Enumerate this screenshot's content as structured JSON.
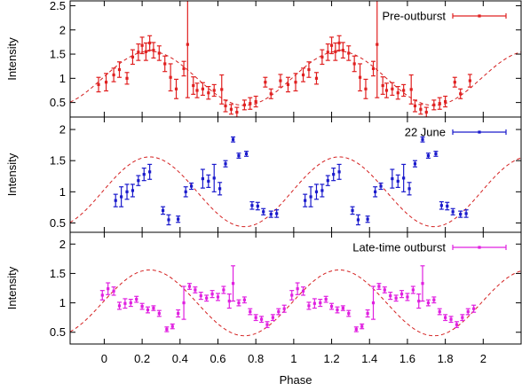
{
  "chart_data": {
    "type": "scatter",
    "xlabel": "Phase",
    "xlim": [
      -0.18,
      2.2
    ],
    "xticks": [
      0,
      0.2,
      0.4,
      0.6,
      0.8,
      1,
      1.2,
      1.4,
      1.6,
      1.8,
      2
    ],
    "xtick_labels": [
      "0",
      "0.2",
      "0.4",
      "0.6",
      "0.8",
      "1",
      "1.2",
      "1.4",
      "1.6",
      "1.8",
      "2"
    ],
    "model_curve": {
      "style": "dashed",
      "color": "#d42020",
      "mean": 1.0,
      "amplitude": 0.56,
      "peak_phase": 0.24
    },
    "panels": [
      {
        "ylabel": "Intensity",
        "ylim": [
          0.2,
          2.6
        ],
        "yticks": [
          0.5,
          1,
          1.5,
          2,
          2.5
        ],
        "ytick_labels": [
          "0.5",
          "1",
          "1.5",
          "2",
          "2.5"
        ],
        "legend": "Pre-outburst",
        "legend_position": "top-right",
        "color": "#e02020",
        "points": [
          {
            "x": -0.03,
            "y": 0.87,
            "err": 0.15
          },
          {
            "x": 0.01,
            "y": 0.92,
            "err": 0.18
          },
          {
            "x": 0.05,
            "y": 1.07,
            "err": 0.14
          },
          {
            "x": 0.08,
            "y": 1.18,
            "err": 0.16
          },
          {
            "x": 0.12,
            "y": 1.0,
            "err": 0.12
          },
          {
            "x": 0.15,
            "y": 1.44,
            "err": 0.15
          },
          {
            "x": 0.18,
            "y": 1.54,
            "err": 0.17
          },
          {
            "x": 0.2,
            "y": 1.68,
            "err": 0.17
          },
          {
            "x": 0.22,
            "y": 1.55,
            "err": 0.18
          },
          {
            "x": 0.24,
            "y": 1.73,
            "err": 0.15
          },
          {
            "x": 0.26,
            "y": 1.58,
            "err": 0.16
          },
          {
            "x": 0.29,
            "y": 1.52,
            "err": 0.15
          },
          {
            "x": 0.32,
            "y": 1.3,
            "err": 0.16
          },
          {
            "x": 0.35,
            "y": 1.02,
            "err": 0.28
          },
          {
            "x": 0.38,
            "y": 0.78,
            "err": 0.2
          },
          {
            "x": 0.42,
            "y": 1.2,
            "err": 0.15
          },
          {
            "x": 0.44,
            "y": 1.7,
            "err": 1.1
          },
          {
            "x": 0.47,
            "y": 0.85,
            "err": 0.18
          },
          {
            "x": 0.49,
            "y": 0.75,
            "err": 0.15
          },
          {
            "x": 0.52,
            "y": 0.78,
            "err": 0.13
          },
          {
            "x": 0.55,
            "y": 0.7,
            "err": 0.13
          },
          {
            "x": 0.58,
            "y": 0.75,
            "err": 0.12
          },
          {
            "x": 0.62,
            "y": 0.77,
            "err": 0.3
          },
          {
            "x": 0.64,
            "y": 0.43,
            "err": 0.12
          },
          {
            "x": 0.67,
            "y": 0.36,
            "err": 0.1
          },
          {
            "x": 0.7,
            "y": 0.3,
            "err": 0.1
          },
          {
            "x": 0.74,
            "y": 0.45,
            "err": 0.1
          },
          {
            "x": 0.77,
            "y": 0.48,
            "err": 0.12
          },
          {
            "x": 0.8,
            "y": 0.52,
            "err": 0.11
          },
          {
            "x": 0.85,
            "y": 0.92,
            "err": 0.1
          },
          {
            "x": 0.88,
            "y": 0.68,
            "err": 0.1
          },
          {
            "x": 0.93,
            "y": 0.95,
            "err": 0.13
          },
          {
            "x": 0.97,
            "y": 0.87,
            "err": 0.15
          },
          {
            "x": 1.01,
            "y": 0.92,
            "err": 0.18
          },
          {
            "x": 1.05,
            "y": 1.07,
            "err": 0.14
          },
          {
            "x": 1.08,
            "y": 1.18,
            "err": 0.16
          },
          {
            "x": 1.12,
            "y": 1.0,
            "err": 0.12
          },
          {
            "x": 1.15,
            "y": 1.44,
            "err": 0.15
          },
          {
            "x": 1.18,
            "y": 1.54,
            "err": 0.17
          },
          {
            "x": 1.2,
            "y": 1.68,
            "err": 0.17
          },
          {
            "x": 1.22,
            "y": 1.55,
            "err": 0.18
          },
          {
            "x": 1.24,
            "y": 1.73,
            "err": 0.15
          },
          {
            "x": 1.26,
            "y": 1.58,
            "err": 0.16
          },
          {
            "x": 1.29,
            "y": 1.52,
            "err": 0.15
          },
          {
            "x": 1.32,
            "y": 1.3,
            "err": 0.16
          },
          {
            "x": 1.35,
            "y": 1.02,
            "err": 0.28
          },
          {
            "x": 1.38,
            "y": 0.78,
            "err": 0.2
          },
          {
            "x": 1.42,
            "y": 1.2,
            "err": 0.15
          },
          {
            "x": 1.44,
            "y": 1.7,
            "err": 1.1
          },
          {
            "x": 1.47,
            "y": 0.85,
            "err": 0.18
          },
          {
            "x": 1.49,
            "y": 0.75,
            "err": 0.15
          },
          {
            "x": 1.52,
            "y": 0.78,
            "err": 0.13
          },
          {
            "x": 1.55,
            "y": 0.7,
            "err": 0.13
          },
          {
            "x": 1.58,
            "y": 0.75,
            "err": 0.12
          },
          {
            "x": 1.62,
            "y": 0.77,
            "err": 0.3
          },
          {
            "x": 1.64,
            "y": 0.43,
            "err": 0.12
          },
          {
            "x": 1.67,
            "y": 0.36,
            "err": 0.1
          },
          {
            "x": 1.7,
            "y": 0.3,
            "err": 0.1
          },
          {
            "x": 1.74,
            "y": 0.45,
            "err": 0.1
          },
          {
            "x": 1.77,
            "y": 0.48,
            "err": 0.12
          },
          {
            "x": 1.8,
            "y": 0.52,
            "err": 0.11
          },
          {
            "x": 1.85,
            "y": 0.92,
            "err": 0.1
          },
          {
            "x": 1.88,
            "y": 0.68,
            "err": 0.1
          },
          {
            "x": 1.93,
            "y": 0.95,
            "err": 0.13
          }
        ]
      },
      {
        "ylabel": "Intensity",
        "ylim": [
          0.35,
          2.2
        ],
        "yticks": [
          0.5,
          1,
          1.5,
          2
        ],
        "ytick_labels": [
          "0.5",
          "1",
          "1.5",
          "2"
        ],
        "legend": "22 June",
        "legend_position": "top-right",
        "color": "#1a1acc",
        "points": [
          {
            "x": 0.06,
            "y": 0.86,
            "err": 0.1
          },
          {
            "x": 0.09,
            "y": 0.92,
            "err": 0.16
          },
          {
            "x": 0.12,
            "y": 1.0,
            "err": 0.12
          },
          {
            "x": 0.15,
            "y": 1.02,
            "err": 0.1
          },
          {
            "x": 0.18,
            "y": 1.18,
            "err": 0.08
          },
          {
            "x": 0.21,
            "y": 1.28,
            "err": 0.1
          },
          {
            "x": 0.24,
            "y": 1.32,
            "err": 0.12
          },
          {
            "x": 0.31,
            "y": 0.7,
            "err": 0.06
          },
          {
            "x": 0.34,
            "y": 0.55,
            "err": 0.08
          },
          {
            "x": 0.39,
            "y": 0.56,
            "err": 0.05
          },
          {
            "x": 0.43,
            "y": 1.0,
            "err": 0.08
          },
          {
            "x": 0.46,
            "y": 1.09,
            "err": 0.05
          },
          {
            "x": 0.52,
            "y": 1.21,
            "err": 0.15
          },
          {
            "x": 0.55,
            "y": 1.17,
            "err": 0.1
          },
          {
            "x": 0.58,
            "y": 1.22,
            "err": 0.22
          },
          {
            "x": 0.61,
            "y": 1.05,
            "err": 0.1
          },
          {
            "x": 0.64,
            "y": 1.45,
            "err": 0.05
          },
          {
            "x": 0.68,
            "y": 1.84,
            "err": 0.04
          },
          {
            "x": 0.71,
            "y": 1.58,
            "err": 0.04
          },
          {
            "x": 0.75,
            "y": 1.61,
            "err": 0.04
          },
          {
            "x": 0.78,
            "y": 0.78,
            "err": 0.06
          },
          {
            "x": 0.81,
            "y": 0.77,
            "err": 0.06
          },
          {
            "x": 0.84,
            "y": 0.68,
            "err": 0.05
          },
          {
            "x": 0.88,
            "y": 0.64,
            "err": 0.05
          },
          {
            "x": 0.91,
            "y": 0.65,
            "err": 0.06
          },
          {
            "x": 1.06,
            "y": 0.86,
            "err": 0.1
          },
          {
            "x": 1.09,
            "y": 0.92,
            "err": 0.16
          },
          {
            "x": 1.12,
            "y": 1.0,
            "err": 0.12
          },
          {
            "x": 1.15,
            "y": 1.02,
            "err": 0.1
          },
          {
            "x": 1.18,
            "y": 1.18,
            "err": 0.08
          },
          {
            "x": 1.21,
            "y": 1.28,
            "err": 0.1
          },
          {
            "x": 1.24,
            "y": 1.32,
            "err": 0.12
          },
          {
            "x": 1.31,
            "y": 0.7,
            "err": 0.06
          },
          {
            "x": 1.34,
            "y": 0.55,
            "err": 0.08
          },
          {
            "x": 1.39,
            "y": 0.56,
            "err": 0.05
          },
          {
            "x": 1.43,
            "y": 1.0,
            "err": 0.08
          },
          {
            "x": 1.46,
            "y": 1.09,
            "err": 0.05
          },
          {
            "x": 1.52,
            "y": 1.21,
            "err": 0.15
          },
          {
            "x": 1.55,
            "y": 1.17,
            "err": 0.1
          },
          {
            "x": 1.58,
            "y": 1.22,
            "err": 0.22
          },
          {
            "x": 1.61,
            "y": 1.05,
            "err": 0.1
          },
          {
            "x": 1.64,
            "y": 1.45,
            "err": 0.05
          },
          {
            "x": 1.68,
            "y": 1.84,
            "err": 0.04
          },
          {
            "x": 1.71,
            "y": 1.58,
            "err": 0.04
          },
          {
            "x": 1.75,
            "y": 1.61,
            "err": 0.04
          },
          {
            "x": 1.78,
            "y": 0.78,
            "err": 0.06
          },
          {
            "x": 1.81,
            "y": 0.77,
            "err": 0.06
          },
          {
            "x": 1.84,
            "y": 0.68,
            "err": 0.05
          },
          {
            "x": 1.88,
            "y": 0.64,
            "err": 0.05
          },
          {
            "x": 1.91,
            "y": 0.65,
            "err": 0.06
          }
        ]
      },
      {
        "ylabel": "Intensity",
        "ylim": [
          0.3,
          2.2
        ],
        "yticks": [
          0.5,
          1,
          1.5,
          2
        ],
        "ytick_labels": [
          "0.5",
          "1",
          "1.5",
          "2"
        ],
        "legend": "Late-time outburst",
        "legend_position": "top-right",
        "color": "#e020e0",
        "points": [
          {
            "x": -0.01,
            "y": 1.13,
            "err": 0.08
          },
          {
            "x": 0.02,
            "y": 1.24,
            "err": 0.1
          },
          {
            "x": 0.05,
            "y": 1.2,
            "err": 0.07
          },
          {
            "x": 0.08,
            "y": 0.95,
            "err": 0.06
          },
          {
            "x": 0.11,
            "y": 0.99,
            "err": 0.08
          },
          {
            "x": 0.14,
            "y": 1.0,
            "err": 0.06
          },
          {
            "x": 0.17,
            "y": 1.06,
            "err": 0.05
          },
          {
            "x": 0.2,
            "y": 0.94,
            "err": 0.05
          },
          {
            "x": 0.23,
            "y": 0.88,
            "err": 0.05
          },
          {
            "x": 0.26,
            "y": 0.91,
            "err": 0.04
          },
          {
            "x": 0.29,
            "y": 0.82,
            "err": 0.05
          },
          {
            "x": 0.33,
            "y": 0.55,
            "err": 0.04
          },
          {
            "x": 0.36,
            "y": 0.6,
            "err": 0.04
          },
          {
            "x": 0.39,
            "y": 0.82,
            "err": 0.06
          },
          {
            "x": 0.42,
            "y": 1.0,
            "err": 0.28
          },
          {
            "x": 0.45,
            "y": 1.28,
            "err": 0.05
          },
          {
            "x": 0.48,
            "y": 1.22,
            "err": 0.05
          },
          {
            "x": 0.51,
            "y": 1.12,
            "err": 0.06
          },
          {
            "x": 0.54,
            "y": 1.08,
            "err": 0.05
          },
          {
            "x": 0.57,
            "y": 1.15,
            "err": 0.06
          },
          {
            "x": 0.6,
            "y": 1.1,
            "err": 0.06
          },
          {
            "x": 0.63,
            "y": 1.22,
            "err": 0.06
          },
          {
            "x": 0.66,
            "y": 1.03,
            "err": 0.12
          },
          {
            "x": 0.68,
            "y": 1.33,
            "err": 0.3
          },
          {
            "x": 0.71,
            "y": 1.0,
            "err": 0.05
          },
          {
            "x": 0.74,
            "y": 1.05,
            "err": 0.05
          },
          {
            "x": 0.77,
            "y": 0.85,
            "err": 0.05
          },
          {
            "x": 0.8,
            "y": 0.75,
            "err": 0.05
          },
          {
            "x": 0.83,
            "y": 0.72,
            "err": 0.05
          },
          {
            "x": 0.86,
            "y": 0.63,
            "err": 0.05
          },
          {
            "x": 0.89,
            "y": 0.75,
            "err": 0.05
          },
          {
            "x": 0.92,
            "y": 0.85,
            "err": 0.05
          },
          {
            "x": 0.95,
            "y": 0.9,
            "err": 0.06
          },
          {
            "x": 0.99,
            "y": 1.13,
            "err": 0.08
          },
          {
            "x": 1.02,
            "y": 1.24,
            "err": 0.1
          },
          {
            "x": 1.05,
            "y": 1.2,
            "err": 0.07
          },
          {
            "x": 1.08,
            "y": 0.95,
            "err": 0.06
          },
          {
            "x": 1.11,
            "y": 0.99,
            "err": 0.08
          },
          {
            "x": 1.14,
            "y": 1.0,
            "err": 0.06
          },
          {
            "x": 1.17,
            "y": 1.06,
            "err": 0.05
          },
          {
            "x": 1.2,
            "y": 0.94,
            "err": 0.05
          },
          {
            "x": 1.23,
            "y": 0.88,
            "err": 0.05
          },
          {
            "x": 1.26,
            "y": 0.91,
            "err": 0.04
          },
          {
            "x": 1.29,
            "y": 0.82,
            "err": 0.05
          },
          {
            "x": 1.33,
            "y": 0.55,
            "err": 0.04
          },
          {
            "x": 1.36,
            "y": 0.6,
            "err": 0.04
          },
          {
            "x": 1.39,
            "y": 0.82,
            "err": 0.06
          },
          {
            "x": 1.42,
            "y": 1.0,
            "err": 0.28
          },
          {
            "x": 1.45,
            "y": 1.28,
            "err": 0.05
          },
          {
            "x": 1.48,
            "y": 1.22,
            "err": 0.05
          },
          {
            "x": 1.51,
            "y": 1.12,
            "err": 0.06
          },
          {
            "x": 1.54,
            "y": 1.08,
            "err": 0.05
          },
          {
            "x": 1.57,
            "y": 1.15,
            "err": 0.06
          },
          {
            "x": 1.6,
            "y": 1.1,
            "err": 0.06
          },
          {
            "x": 1.63,
            "y": 1.22,
            "err": 0.06
          },
          {
            "x": 1.66,
            "y": 1.03,
            "err": 0.12
          },
          {
            "x": 1.68,
            "y": 1.33,
            "err": 0.3
          },
          {
            "x": 1.71,
            "y": 1.0,
            "err": 0.05
          },
          {
            "x": 1.74,
            "y": 1.05,
            "err": 0.05
          },
          {
            "x": 1.77,
            "y": 0.85,
            "err": 0.05
          },
          {
            "x": 1.8,
            "y": 0.75,
            "err": 0.05
          },
          {
            "x": 1.83,
            "y": 0.72,
            "err": 0.05
          },
          {
            "x": 1.86,
            "y": 0.63,
            "err": 0.05
          },
          {
            "x": 1.89,
            "y": 0.75,
            "err": 0.05
          },
          {
            "x": 1.92,
            "y": 0.85,
            "err": 0.05
          },
          {
            "x": 1.95,
            "y": 0.9,
            "err": 0.06
          }
        ]
      }
    ]
  }
}
